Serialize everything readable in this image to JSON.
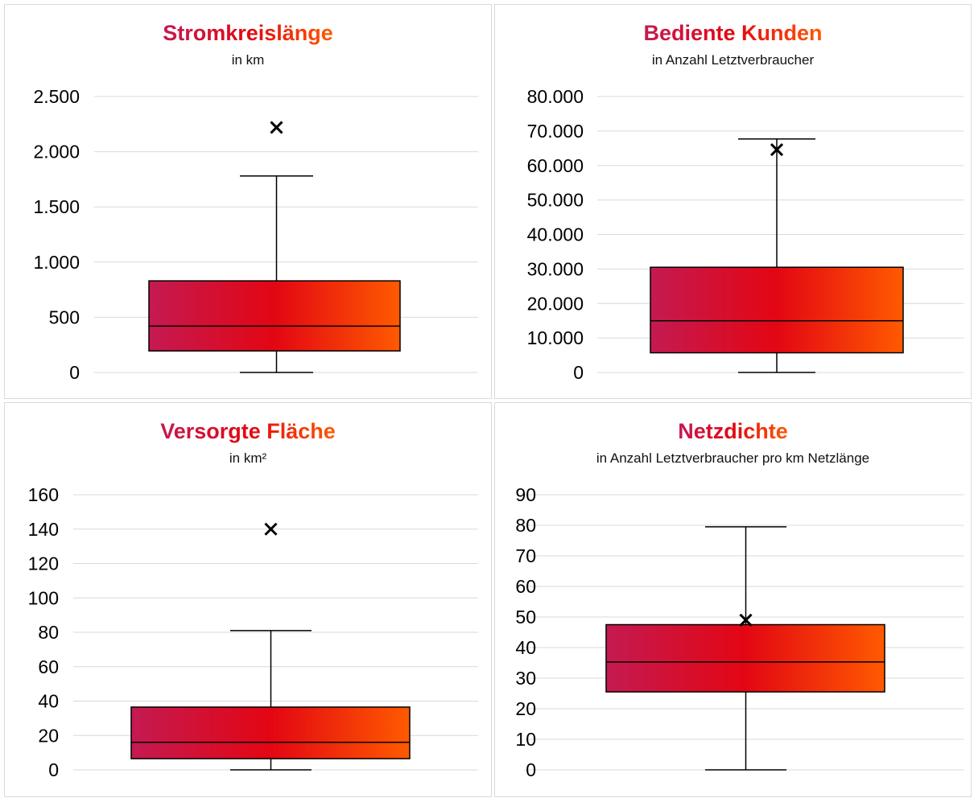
{
  "colors": {
    "grad_left": "#c41a52",
    "grad_mid": "#e30613",
    "grad_right": "#ff5a00",
    "grid": "#d9d9d9"
  },
  "chart_data": [
    {
      "type": "box",
      "title": "Stromkreislänge",
      "subtitle": "in km",
      "ylim": [
        0,
        2500
      ],
      "yticks": [
        0,
        500,
        1000,
        1500,
        2000,
        2500
      ],
      "ytick_labels": [
        "0",
        "500",
        "1.000",
        "1.500",
        "2.000",
        "2.500"
      ],
      "whisker_low": 0,
      "q1": 195,
      "median": 420,
      "q3": 830,
      "whisker_high": 1780,
      "mean": 2220
    },
    {
      "type": "box",
      "title": "Bediente Kunden",
      "subtitle": "in Anzahl Letztverbraucher",
      "ylim": [
        0,
        80000
      ],
      "yticks": [
        0,
        10000,
        20000,
        30000,
        40000,
        50000,
        60000,
        70000,
        80000
      ],
      "ytick_labels": [
        "0",
        "10.000",
        "20.000",
        "30.000",
        "40.000",
        "50.000",
        "60.000",
        "70.000",
        "80.000"
      ],
      "whisker_low": 0,
      "q1": 5700,
      "median": 15000,
      "q3": 30500,
      "whisker_high": 67700,
      "mean": 64600
    },
    {
      "type": "box",
      "title": "Versorgte Fläche",
      "subtitle": "in km²",
      "ylim": [
        0,
        160
      ],
      "yticks": [
        0,
        20,
        40,
        60,
        80,
        100,
        120,
        140,
        160
      ],
      "ytick_labels": [
        "0",
        "20",
        "40",
        "60",
        "80",
        "100",
        "120",
        "140",
        "160"
      ],
      "whisker_low": 0,
      "q1": 6.5,
      "median": 16,
      "q3": 36.5,
      "whisker_high": 81,
      "mean": 140
    },
    {
      "type": "box",
      "title": "Netzdichte",
      "subtitle": "in Anzahl Letztverbraucher pro km Netzlänge",
      "ylim": [
        0,
        90
      ],
      "yticks": [
        0,
        10,
        20,
        30,
        40,
        50,
        60,
        70,
        80,
        90
      ],
      "ytick_labels": [
        "0",
        "10",
        "20",
        "30",
        "40",
        "50",
        "60",
        "70",
        "80",
        "90"
      ],
      "whisker_low": 0,
      "q1": 25.5,
      "median": 35.3,
      "q3": 47.5,
      "whisker_high": 79.5,
      "mean": 49
    }
  ]
}
